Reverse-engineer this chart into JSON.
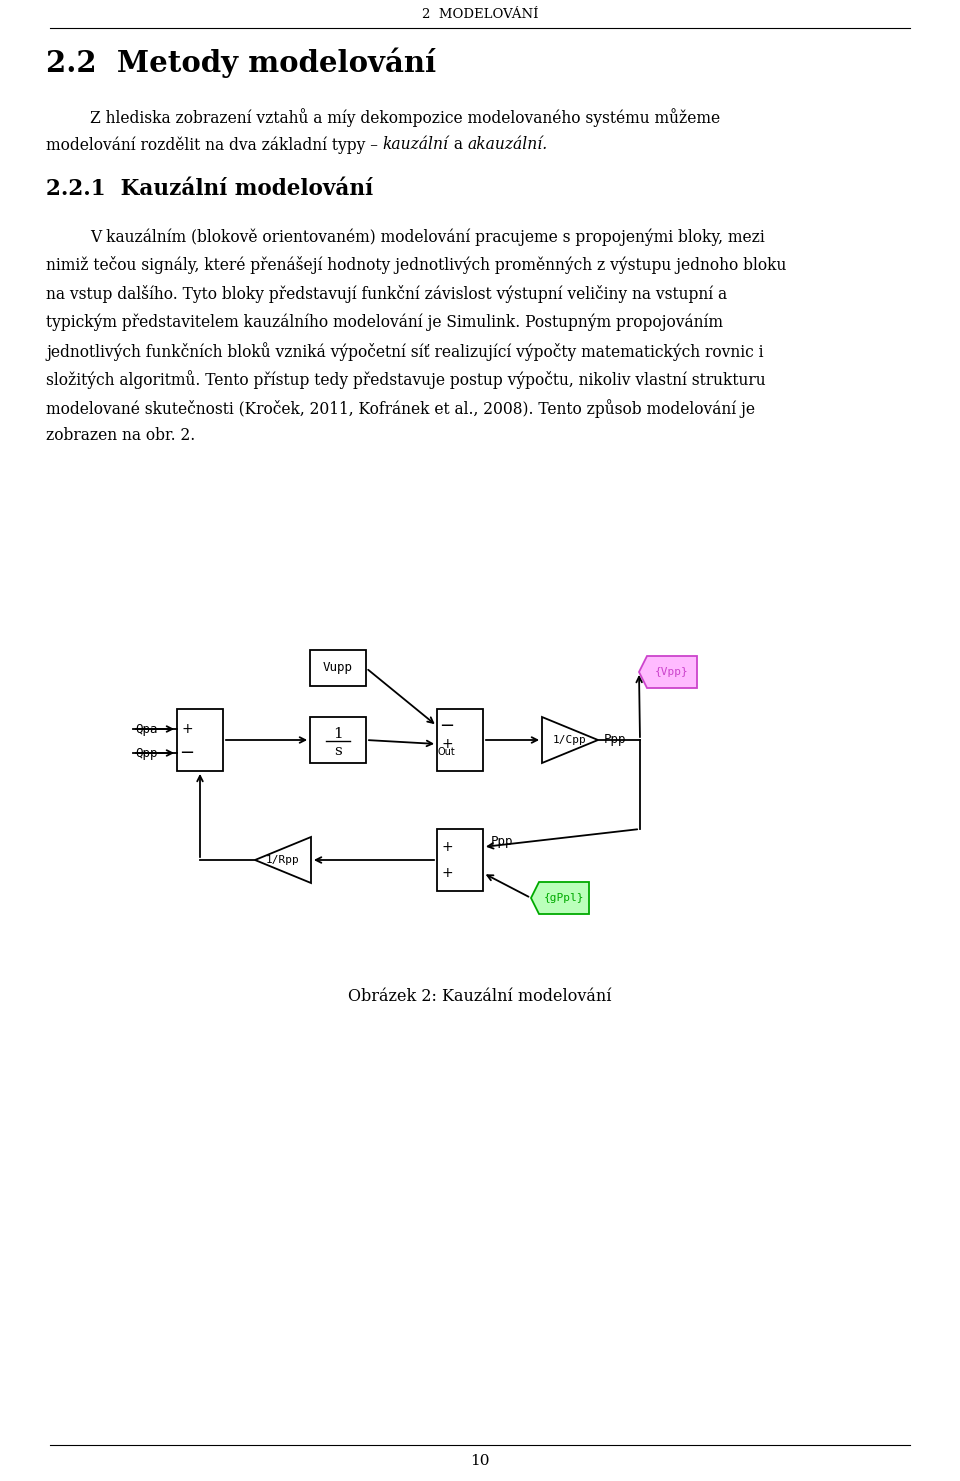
{
  "page_title": "2  MODELOVÁNÍ",
  "section_title": "2.2  Metody modelování",
  "subsection_title": "2.2.1  Kauzální modelování",
  "para1_line1": "Z hlediska zobrazení vztahů a míy dekompozice modelovaného systému můžeme",
  "para1_line2_normal1": "modelování rozdělit na dva základní typy – ",
  "para1_line2_italic1": "kauzální",
  "para1_line2_normal2": " a ",
  "para1_line2_italic2": "akauzální.",
  "body_lines": [
    "V kauzálním (blokově orientovaném) modelování pracujeme s propojenými bloky, mezi",
    "nimiž tečou signály, které přenášejí hodnoty jednotlivých proměnných z výstupu jednoho bloku",
    "na vstup dalšího. Tyto bloky představují funkční závislost výstupní veličiny na vstupní a",
    "typickým představitelem kauzálního modelování je Simulink. Postupným propojováním",
    "jednotlivých funkčních bloků vzniká výpočetní síť realizující výpočty matematických rovnic i",
    "složitých algoritmů. Tento přístup tedy představuje postup výpočtu, nikoliv vlastní strukturu",
    "modelované skutečnosti (Kroček, 2011, Kofránek et al., 2008). Tento způsob modelování je",
    "zobrazen na obr. 2."
  ],
  "fig_caption": "Obrázek 2: Kauzální modelování",
  "page_number": "10",
  "bg_color": "#ffffff",
  "text_color": "#000000"
}
